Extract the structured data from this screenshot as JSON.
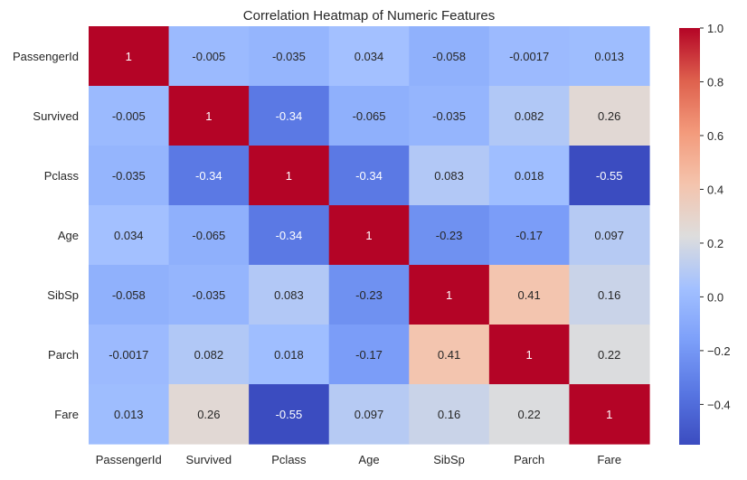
{
  "chart_data": {
    "type": "heatmap",
    "title": "Correlation Heatmap of Numeric Features",
    "colormap": "coolwarm",
    "rows": [
      "PassengerId",
      "Survived",
      "Pclass",
      "Age",
      "SibSp",
      "Parch",
      "Fare"
    ],
    "columns": [
      "PassengerId",
      "Survived",
      "Pclass",
      "Age",
      "SibSp",
      "Parch",
      "Fare"
    ],
    "values": [
      [
        1,
        -0.005,
        -0.035,
        0.034,
        -0.058,
        -0.0017,
        0.013
      ],
      [
        -0.005,
        1,
        -0.34,
        -0.065,
        -0.035,
        0.082,
        0.26
      ],
      [
        -0.035,
        -0.34,
        1,
        -0.34,
        0.083,
        0.018,
        -0.55
      ],
      [
        0.034,
        -0.065,
        -0.34,
        1,
        -0.23,
        -0.17,
        0.097
      ],
      [
        -0.058,
        -0.035,
        0.083,
        -0.23,
        1,
        0.41,
        0.16
      ],
      [
        -0.0017,
        0.082,
        0.018,
        -0.17,
        0.41,
        1,
        0.22
      ],
      [
        0.013,
        0.26,
        -0.55,
        0.097,
        0.16,
        0.22,
        1
      ]
    ],
    "labels": [
      [
        "1",
        "-0.005",
        "-0.035",
        "0.034",
        "-0.058",
        "-0.0017",
        "0.013"
      ],
      [
        "-0.005",
        "1",
        "-0.34",
        "-0.065",
        "-0.035",
        "0.082",
        "0.26"
      ],
      [
        "-0.035",
        "-0.34",
        "1",
        "-0.34",
        "0.083",
        "0.018",
        "-0.55"
      ],
      [
        "0.034",
        "-0.065",
        "-0.34",
        "1",
        "-0.23",
        "-0.17",
        "0.097"
      ],
      [
        "-0.058",
        "-0.035",
        "0.083",
        "-0.23",
        "1",
        "0.41",
        "0.16"
      ],
      [
        "-0.0017",
        "0.082",
        "0.018",
        "-0.17",
        "0.41",
        "1",
        "0.22"
      ],
      [
        "0.013",
        "0.26",
        "-0.55",
        "0.097",
        "0.16",
        "0.22",
        "1"
      ]
    ],
    "colorbar": {
      "range": [
        -0.55,
        1.0
      ],
      "ticks": [
        -0.4,
        -0.2,
        0.0,
        0.2,
        0.4,
        0.6,
        0.8,
        1.0
      ],
      "tick_labels": [
        "−0.4",
        "−0.2",
        "0.0",
        "0.2",
        "0.4",
        "0.6",
        "0.8",
        "1.0"
      ]
    }
  }
}
